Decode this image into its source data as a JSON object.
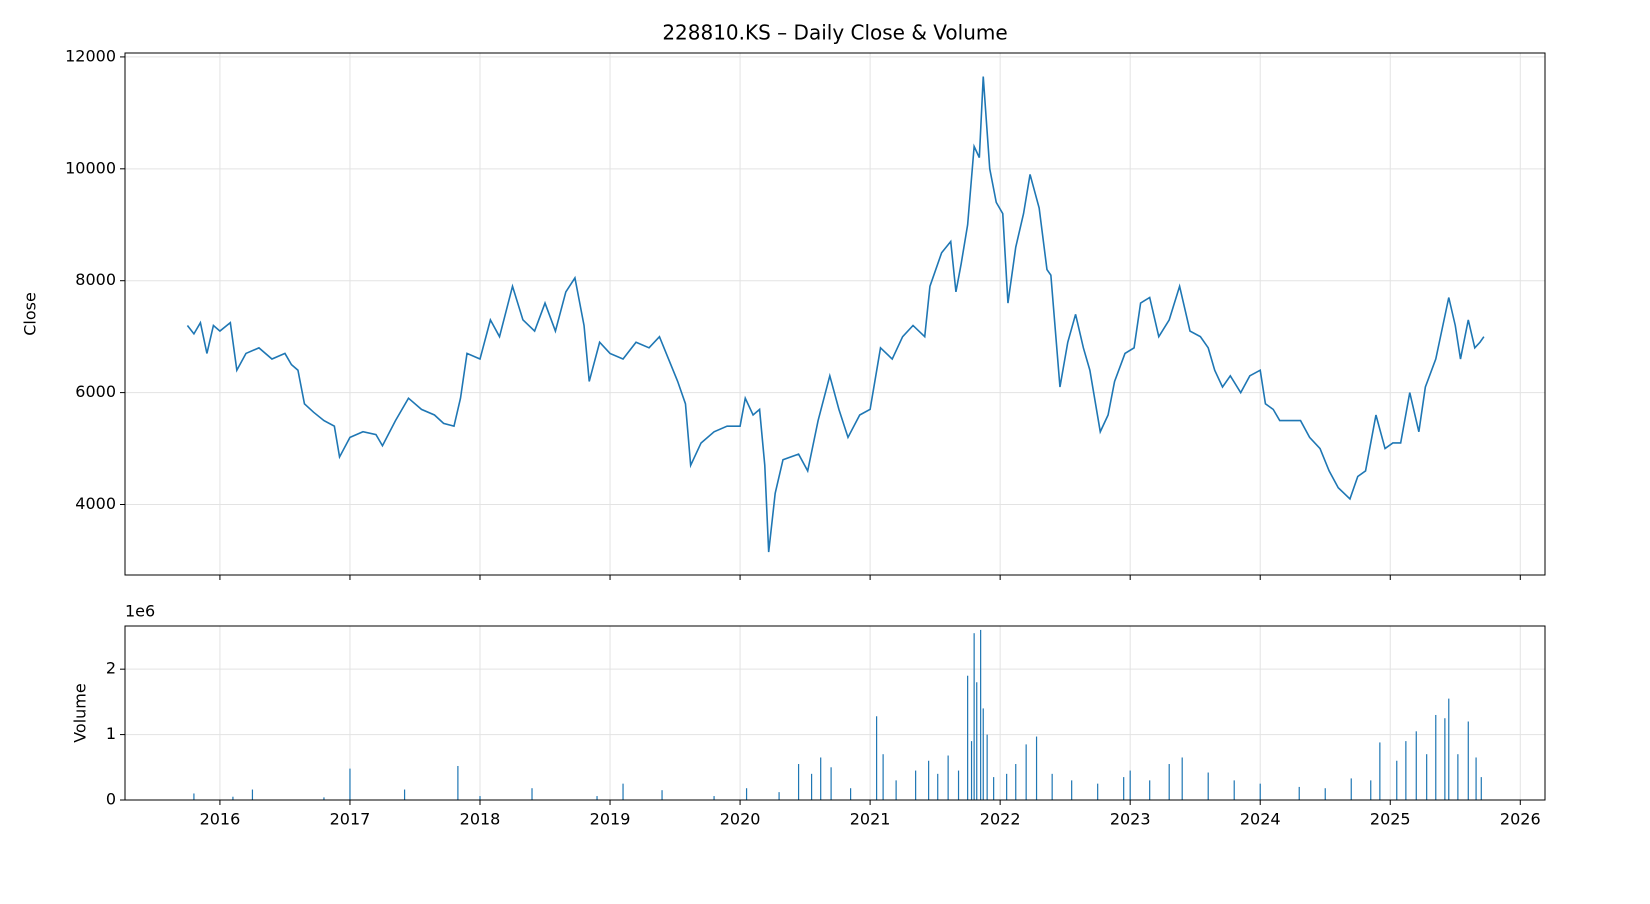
{
  "chart_data": [
    {
      "type": "line",
      "title": "228810.KS – Daily Close & Volume",
      "ylabel": "Close",
      "color": "#1f77b4",
      "grid": true,
      "xlim": [
        2015.27,
        2026.19
      ],
      "xticks": [
        2016,
        2017,
        2018,
        2019,
        2020,
        2021,
        2022,
        2023,
        2024,
        2025,
        2026
      ],
      "ylim": [
        2740,
        12070
      ],
      "yticks": [
        4000,
        6000,
        8000,
        10000,
        12000
      ],
      "x": [
        2015.75,
        2015.8,
        2015.85,
        2015.9,
        2015.95,
        2016.0,
        2016.08,
        2016.13,
        2016.2,
        2016.3,
        2016.4,
        2016.5,
        2016.55,
        2016.6,
        2016.65,
        2016.72,
        2016.8,
        2016.88,
        2016.92,
        2017.0,
        2017.1,
        2017.2,
        2017.25,
        2017.35,
        2017.45,
        2017.55,
        2017.65,
        2017.72,
        2017.8,
        2017.85,
        2017.9,
        2018.0,
        2018.08,
        2018.15,
        2018.25,
        2018.33,
        2018.42,
        2018.5,
        2018.58,
        2018.66,
        2018.73,
        2018.8,
        2018.84,
        2018.92,
        2019.0,
        2019.1,
        2019.2,
        2019.3,
        2019.38,
        2019.45,
        2019.52,
        2019.58,
        2019.62,
        2019.7,
        2019.8,
        2019.9,
        2020.0,
        2020.04,
        2020.1,
        2020.15,
        2020.19,
        2020.22,
        2020.27,
        2020.33,
        2020.45,
        2020.52,
        2020.6,
        2020.69,
        2020.76,
        2020.83,
        2020.92,
        2021.0,
        2021.08,
        2021.17,
        2021.25,
        2021.33,
        2021.42,
        2021.46,
        2021.55,
        2021.62,
        2021.66,
        2021.7,
        2021.75,
        2021.8,
        2021.84,
        2021.87,
        2021.92,
        2021.97,
        2022.02,
        2022.06,
        2022.12,
        2022.18,
        2022.23,
        2022.3,
        2022.36,
        2022.39,
        2022.46,
        2022.52,
        2022.58,
        2022.64,
        2022.69,
        2022.77,
        2022.83,
        2022.88,
        2022.96,
        2023.03,
        2023.08,
        2023.15,
        2023.22,
        2023.3,
        2023.38,
        2023.46,
        2023.54,
        2023.6,
        2023.65,
        2023.71,
        2023.77,
        2023.85,
        2023.92,
        2024.0,
        2024.04,
        2024.1,
        2024.15,
        2024.22,
        2024.31,
        2024.38,
        2024.46,
        2024.53,
        2024.6,
        2024.69,
        2024.75,
        2024.81,
        2024.89,
        2024.96,
        2025.02,
        2025.08,
        2025.15,
        2025.22,
        2025.27,
        2025.35,
        2025.45,
        2025.5,
        2025.54,
        2025.6,
        2025.65,
        2025.69,
        2025.72
      ],
      "values": [
        7200,
        7050,
        7250,
        6700,
        7200,
        7100,
        7250,
        6400,
        6700,
        6800,
        6600,
        6700,
        6500,
        6400,
        5800,
        5650,
        5500,
        5400,
        4850,
        5200,
        5300,
        5250,
        5050,
        5500,
        5900,
        5700,
        5600,
        5450,
        5400,
        5900,
        6700,
        6600,
        7300,
        7000,
        7900,
        7300,
        7100,
        7600,
        7100,
        7800,
        8050,
        7200,
        6200,
        6900,
        6700,
        6600,
        6900,
        6800,
        7000,
        6600,
        6200,
        5800,
        4700,
        5100,
        5300,
        5400,
        5400,
        5900,
        5600,
        5700,
        4700,
        3150,
        4200,
        4800,
        4900,
        4600,
        5500,
        6300,
        5700,
        5200,
        5600,
        5700,
        6800,
        6600,
        7000,
        7200,
        7000,
        7900,
        8500,
        8700,
        7800,
        8300,
        9000,
        10400,
        10200,
        11650,
        10000,
        9400,
        9200,
        7600,
        8600,
        9200,
        9900,
        9300,
        8200,
        8100,
        6100,
        6900,
        7400,
        6800,
        6400,
        5300,
        5600,
        6200,
        6700,
        6800,
        7600,
        7700,
        7000,
        7300,
        7900,
        7100,
        7000,
        6800,
        6400,
        6100,
        6300,
        6000,
        6300,
        6400,
        5800,
        5700,
        5500,
        5500,
        5500,
        5200,
        5000,
        4600,
        4300,
        4100,
        4500,
        4600,
        5600,
        5000,
        5100,
        5100,
        6000,
        5300,
        6100,
        6600,
        7700,
        7200,
        6600,
        7300,
        6800,
        6900,
        7000
      ]
    },
    {
      "type": "bar",
      "ylabel": "Volume",
      "y_offset_label": "1e6",
      "color": "#1f77b4",
      "grid": true,
      "xlim": [
        2015.27,
        2026.19
      ],
      "xticks": [
        2016,
        2017,
        2018,
        2019,
        2020,
        2021,
        2022,
        2023,
        2024,
        2025,
        2026
      ],
      "ylim": [
        0,
        2660000
      ],
      "yticks": [
        0,
        {
          "value": 1000000,
          "label": "1"
        },
        {
          "value": 2000000,
          "label": "2"
        }
      ],
      "x": [
        2015.8,
        2016.1,
        2016.25,
        2016.8,
        2017.0,
        2017.42,
        2017.83,
        2018.0,
        2018.4,
        2018.9,
        2019.1,
        2019.4,
        2019.8,
        2020.05,
        2020.3,
        2020.45,
        2020.55,
        2020.62,
        2020.7,
        2020.85,
        2021.05,
        2021.1,
        2021.2,
        2021.35,
        2021.45,
        2021.52,
        2021.6,
        2021.68,
        2021.75,
        2021.78,
        2021.8,
        2021.82,
        2021.85,
        2021.87,
        2021.9,
        2021.95,
        2022.05,
        2022.12,
        2022.2,
        2022.28,
        2022.4,
        2022.55,
        2022.75,
        2022.95,
        2023.0,
        2023.15,
        2023.3,
        2023.4,
        2023.6,
        2023.8,
        2024.0,
        2024.3,
        2024.5,
        2024.7,
        2024.85,
        2024.92,
        2025.05,
        2025.12,
        2025.2,
        2025.28,
        2025.35,
        2025.42,
        2025.45,
        2025.52,
        2025.6,
        2025.66,
        2025.7
      ],
      "values": [
        100000,
        50000,
        160000,
        40000,
        480000,
        160000,
        520000,
        60000,
        180000,
        60000,
        250000,
        150000,
        60000,
        180000,
        120000,
        550000,
        400000,
        650000,
        500000,
        180000,
        1280000,
        700000,
        300000,
        450000,
        600000,
        400000,
        680000,
        450000,
        1900000,
        900000,
        2550000,
        1800000,
        2600000,
        1400000,
        1000000,
        350000,
        400000,
        550000,
        850000,
        970000,
        400000,
        300000,
        250000,
        350000,
        450000,
        300000,
        550000,
        650000,
        420000,
        300000,
        250000,
        200000,
        180000,
        330000,
        300000,
        880000,
        600000,
        900000,
        1050000,
        700000,
        1300000,
        1250000,
        1550000,
        700000,
        1200000,
        650000,
        350000
      ]
    }
  ]
}
